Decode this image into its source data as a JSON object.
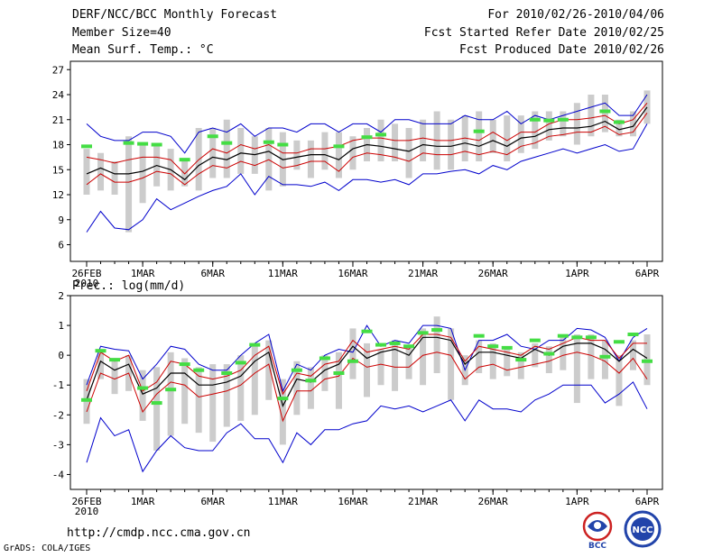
{
  "header": {
    "title": "DERF/NCC/BCC Monthly Forecast",
    "member_size": "Member Size=40",
    "variable1": "Mean Surf. Temp.: °C",
    "period": "For 2010/02/26-2010/04/06",
    "started": "Fcst Started Refer Date 2010/02/25",
    "produced": "Fcst Produced Date 2010/02/26"
  },
  "panel2_label": "Prec.: log(mm/d)",
  "footer": {
    "url": "http://cmdp.ncc.cma.gov.cn",
    "grads": "GrADS: COLA/IGES",
    "logo1_text": "BCC",
    "logo2_text": "NCC"
  },
  "colors": {
    "max_min": "#0000cc",
    "sd_band": "#cc0000",
    "mean": "#000000",
    "range_bar": "#cccccc",
    "marker": "#44dd44"
  },
  "x_ticks": [
    {
      "day": 0,
      "label": "26FEB"
    },
    {
      "day": 4,
      "label": "1MAR"
    },
    {
      "day": 9,
      "label": "6MAR"
    },
    {
      "day": 14,
      "label": "11MAR"
    },
    {
      "day": 19,
      "label": "16MAR"
    },
    {
      "day": 24,
      "label": "21MAR"
    },
    {
      "day": 29,
      "label": "26MAR"
    },
    {
      "day": 35,
      "label": "1APR"
    },
    {
      "day": 40,
      "label": "6APR"
    }
  ],
  "x_year": "2010",
  "chart_data": [
    {
      "type": "line",
      "title": "Mean Surf. Temp.: °C",
      "ylim": [
        4,
        28
      ],
      "yticks": [
        6,
        9,
        12,
        15,
        18,
        21,
        24,
        27
      ],
      "days": 41,
      "series": [
        {
          "name": "max",
          "values": [
            20.5,
            19,
            18.5,
            18.5,
            19.5,
            19.5,
            19,
            17,
            19.5,
            20,
            19.5,
            20.5,
            19,
            20,
            20,
            19.5,
            20.5,
            20.5,
            19.5,
            20.5,
            20.5,
            19.5,
            21,
            21,
            20.5,
            20.5,
            20.5,
            21.5,
            21,
            21,
            22,
            20.5,
            21.5,
            21,
            21.5,
            22,
            22.5,
            23,
            21.5,
            21.5,
            24
          ]
        },
        {
          "name": "upper",
          "values": [
            16.5,
            16.2,
            15.8,
            16.2,
            16.5,
            16.5,
            16.2,
            14.5,
            16.2,
            17.5,
            17,
            18,
            17.5,
            18,
            17,
            17,
            17.5,
            17.5,
            17.8,
            18.5,
            18.8,
            18.8,
            18.5,
            18.5,
            18.8,
            18.5,
            18.5,
            18.8,
            18.5,
            19.5,
            18.5,
            19.5,
            19.5,
            20.5,
            21,
            21,
            21.2,
            21.5,
            20.5,
            21,
            23
          ]
        },
        {
          "name": "mean",
          "values": [
            14.5,
            15.2,
            14.5,
            14.5,
            14.8,
            15.5,
            15,
            13.8,
            15.5,
            16.5,
            16.2,
            17,
            16.8,
            17.2,
            16.2,
            16.5,
            16.8,
            16.8,
            16.2,
            17.5,
            18,
            17.8,
            17.5,
            17.2,
            18,
            17.8,
            17.8,
            18.2,
            17.8,
            18.5,
            17.8,
            18.8,
            19,
            19.8,
            20,
            20,
            20.2,
            20.8,
            19.8,
            20.2,
            22.5
          ]
        },
        {
          "name": "lower",
          "values": [
            13.2,
            14.5,
            13.5,
            13.5,
            14,
            14.8,
            14.5,
            13.2,
            14.5,
            15.5,
            15.2,
            16,
            15.5,
            16.2,
            15.2,
            15.5,
            16,
            16,
            14.8,
            16.5,
            17,
            16.8,
            16.5,
            16,
            17,
            16.8,
            16.8,
            17.2,
            16.8,
            17.2,
            16.8,
            17.8,
            18.2,
            19,
            19.2,
            19.5,
            19.5,
            20.2,
            19.2,
            19.5,
            21.8
          ]
        },
        {
          "name": "min",
          "values": [
            7.5,
            10,
            8,
            7.8,
            9,
            11.5,
            10.2,
            11,
            11.8,
            12.5,
            13,
            14.5,
            12,
            14.2,
            13.2,
            13.2,
            13,
            13.5,
            12.5,
            13.8,
            13.8,
            13.5,
            13.8,
            13.2,
            14.5,
            14.5,
            14.8,
            15,
            14.5,
            15.5,
            15,
            16,
            16.5,
            17,
            17.5,
            17,
            17.5,
            18,
            17.2,
            17.5,
            20.5
          ]
        },
        {
          "name": "range_hi",
          "values": [
            17.5,
            17,
            16,
            19,
            18,
            18,
            17.5,
            16,
            20,
            20,
            21,
            20,
            19,
            20,
            19.5,
            18.5,
            18.5,
            19.5,
            19.5,
            19,
            20,
            21,
            20.5,
            20,
            21,
            22,
            21,
            21.5,
            22,
            21,
            21.5,
            21.5,
            22,
            22,
            22,
            23,
            24,
            24,
            21,
            22,
            24.5
          ]
        },
        {
          "name": "range_lo",
          "values": [
            12,
            12.5,
            12,
            7.5,
            11,
            13,
            12.5,
            13,
            12.5,
            14,
            14,
            14.5,
            14.5,
            12.5,
            13,
            15,
            14,
            15,
            14,
            15,
            16,
            16,
            16,
            14,
            16,
            15,
            15,
            16,
            16,
            17,
            16,
            17,
            17.5,
            18.5,
            19,
            18,
            19,
            19.5,
            19,
            19,
            20.5
          ]
        },
        {
          "name": "marker",
          "values": [
            17.8,
            null,
            null,
            18.2,
            18.1,
            18,
            null,
            16.2,
            null,
            19,
            18.2,
            null,
            null,
            18.3,
            18,
            null,
            null,
            null,
            17.8,
            null,
            18.9,
            19.2,
            null,
            null,
            null,
            null,
            null,
            null,
            19.6,
            null,
            null,
            null,
            21,
            20.9,
            21,
            null,
            null,
            22,
            20.7,
            null,
            null
          ]
        }
      ]
    },
    {
      "type": "line",
      "title": "Prec.: log(mm/d)",
      "ylim": [
        -4.5,
        2
      ],
      "yticks": [
        -4,
        -3,
        -2,
        -1,
        0,
        1,
        2
      ],
      "days": 41,
      "series": [
        {
          "name": "max",
          "values": [
            -1,
            0.3,
            0.2,
            0.15,
            -0.8,
            -0.3,
            0.3,
            0.2,
            -0.3,
            -0.5,
            -0.5,
            0,
            0.4,
            0.7,
            -1.2,
            -0.3,
            -0.5,
            0,
            0.2,
            0.1,
            1,
            0.3,
            0.5,
            0.4,
            1,
            1,
            0.9,
            -0.5,
            0.5,
            0.5,
            0.7,
            0.3,
            0.2,
            0.5,
            0.5,
            0.9,
            0.85,
            0.6,
            -0.2,
            0.6,
            0.9
          ]
        },
        {
          "name": "upper",
          "values": [
            -1.2,
            0.1,
            -0.2,
            0,
            -1.2,
            -0.9,
            -0.2,
            -0.3,
            -0.7,
            -0.8,
            -0.7,
            -0.5,
            0,
            0.3,
            -1.3,
            -0.6,
            -0.7,
            -0.3,
            -0.2,
            0.5,
            0.1,
            0.2,
            0.3,
            0.2,
            0.7,
            0.7,
            0.6,
            -0.2,
            0.3,
            0.2,
            0.1,
            0,
            0.3,
            0.2,
            0.4,
            0.6,
            0.5,
            0.5,
            -0.1,
            0.4,
            0.4
          ]
        },
        {
          "name": "mean",
          "values": [
            -1.5,
            -0.2,
            -0.5,
            -0.3,
            -1.3,
            -1.1,
            -0.6,
            -0.6,
            -1,
            -1,
            -0.9,
            -0.7,
            -0.2,
            0.1,
            -1.7,
            -0.8,
            -0.9,
            -0.5,
            -0.3,
            0.3,
            -0.1,
            0.1,
            0.2,
            0,
            0.6,
            0.6,
            0.5,
            -0.3,
            0.1,
            0.1,
            0,
            -0.1,
            0.2,
            0,
            0.3,
            0.4,
            0.4,
            0.2,
            -0.2,
            0.2,
            -0.1
          ]
        },
        {
          "name": "lower",
          "values": [
            -1.9,
            -0.6,
            -0.8,
            -0.6,
            -1.9,
            -1.3,
            -0.9,
            -1,
            -1.4,
            -1.3,
            -1.2,
            -1,
            -0.6,
            -0.3,
            -2.2,
            -1.2,
            -1.2,
            -0.8,
            -0.7,
            -0.1,
            -0.4,
            -0.3,
            -0.4,
            -0.4,
            0,
            0.1,
            0,
            -0.8,
            -0.4,
            -0.3,
            -0.5,
            -0.4,
            -0.3,
            -0.2,
            0,
            0.1,
            0,
            -0.2,
            -0.6,
            -0.1,
            -0.8
          ]
        },
        {
          "name": "min",
          "values": [
            -3.6,
            -2.1,
            -2.7,
            -2.5,
            -3.9,
            -3.2,
            -2.7,
            -3.1,
            -3.2,
            -3.2,
            -2.6,
            -2.3,
            -2.8,
            -2.8,
            -3.6,
            -2.6,
            -3,
            -2.5,
            -2.5,
            -2.3,
            -2.2,
            -1.7,
            -1.8,
            -1.7,
            -1.9,
            -1.7,
            -1.5,
            -2.2,
            -1.5,
            -1.8,
            -1.8,
            -1.9,
            -1.5,
            -1.3,
            -1,
            -1,
            -1,
            -1.6,
            -1.3,
            -0.9,
            -1.8
          ]
        },
        {
          "name": "range_hi",
          "values": [
            -0.8,
            0.2,
            -0.2,
            0,
            -0.5,
            -0.4,
            0.1,
            -0.1,
            -0.4,
            -0.3,
            -0.3,
            0,
            0.3,
            0.5,
            -0.8,
            -0.2,
            -0.4,
            0,
            0.1,
            0.9,
            0.4,
            0.2,
            0.5,
            0.3,
            0.9,
            1.3,
            0.9,
            0,
            0.5,
            0.4,
            0.3,
            0.1,
            0.4,
            0.3,
            0.7,
            0.7,
            0.7,
            0.5,
            0,
            0.5,
            0.7
          ]
        },
        {
          "name": "range_lo",
          "values": [
            -2.3,
            -0.8,
            -1.3,
            -1.2,
            -2.2,
            -3.2,
            -2.7,
            -2.3,
            -2.6,
            -2.9,
            -2.4,
            -2.2,
            -2,
            -1.5,
            -3,
            -2,
            -1.8,
            -1.2,
            -1.8,
            -0.8,
            -1.4,
            -1,
            -1.2,
            -0.8,
            -1,
            -0.6,
            -1.5,
            -1,
            -0.6,
            -0.8,
            -0.7,
            -0.8,
            -0.4,
            -0.6,
            -0.5,
            -1.6,
            -0.8,
            -0.8,
            -1.7,
            -0.5,
            -1
          ]
        },
        {
          "name": "marker",
          "values": [
            -1.5,
            0.15,
            -0.15,
            null,
            -1.1,
            -1.6,
            -1.15,
            -0.3,
            -0.5,
            null,
            -0.6,
            -0.25,
            0.35,
            null,
            -1.45,
            -0.5,
            -0.85,
            -0.1,
            -0.6,
            -0.2,
            0.8,
            0.35,
            0.4,
            0.3,
            0.75,
            0.85,
            null,
            null,
            0.65,
            0.3,
            0.25,
            -0.15,
            0.5,
            0.05,
            0.65,
            0.6,
            0.6,
            -0.05,
            0.45,
            0.7,
            -0.2
          ]
        }
      ]
    }
  ]
}
